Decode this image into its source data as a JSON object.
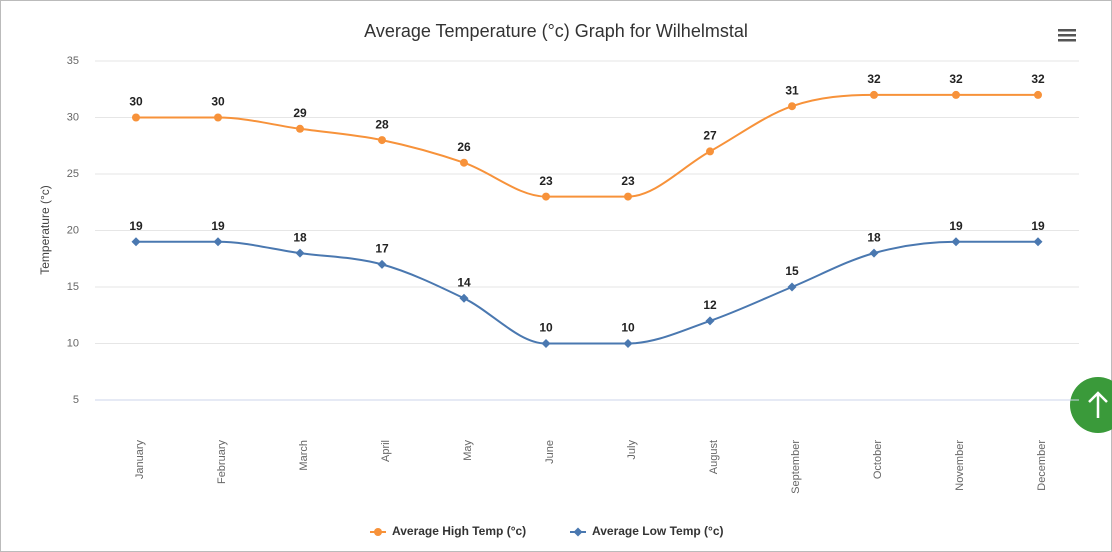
{
  "chart_data": {
    "type": "line",
    "title": "Average Temperature (°c) Graph for Wilhelmstal",
    "y_axis_label": "Temperature (°c)",
    "categories": [
      "January",
      "February",
      "March",
      "April",
      "May",
      "June",
      "July",
      "August",
      "September",
      "October",
      "November",
      "December"
    ],
    "series": [
      {
        "name": "Average High Temp (°c)",
        "color": "#f7923a",
        "marker": "circle",
        "values": [
          30,
          30,
          29,
          28,
          26,
          23,
          23,
          27,
          31,
          32,
          32,
          32
        ]
      },
      {
        "name": "Average Low Temp (°c)",
        "color": "#4a78b0",
        "marker": "diamond",
        "values": [
          19,
          19,
          18,
          17,
          14,
          10,
          10,
          12,
          15,
          18,
          19,
          19
        ]
      }
    ],
    "ylim": [
      5,
      35
    ],
    "yticks": [
      5,
      10,
      15,
      20,
      25,
      30,
      35
    ],
    "grid": true,
    "smooth": true,
    "legend": "bottom"
  }
}
